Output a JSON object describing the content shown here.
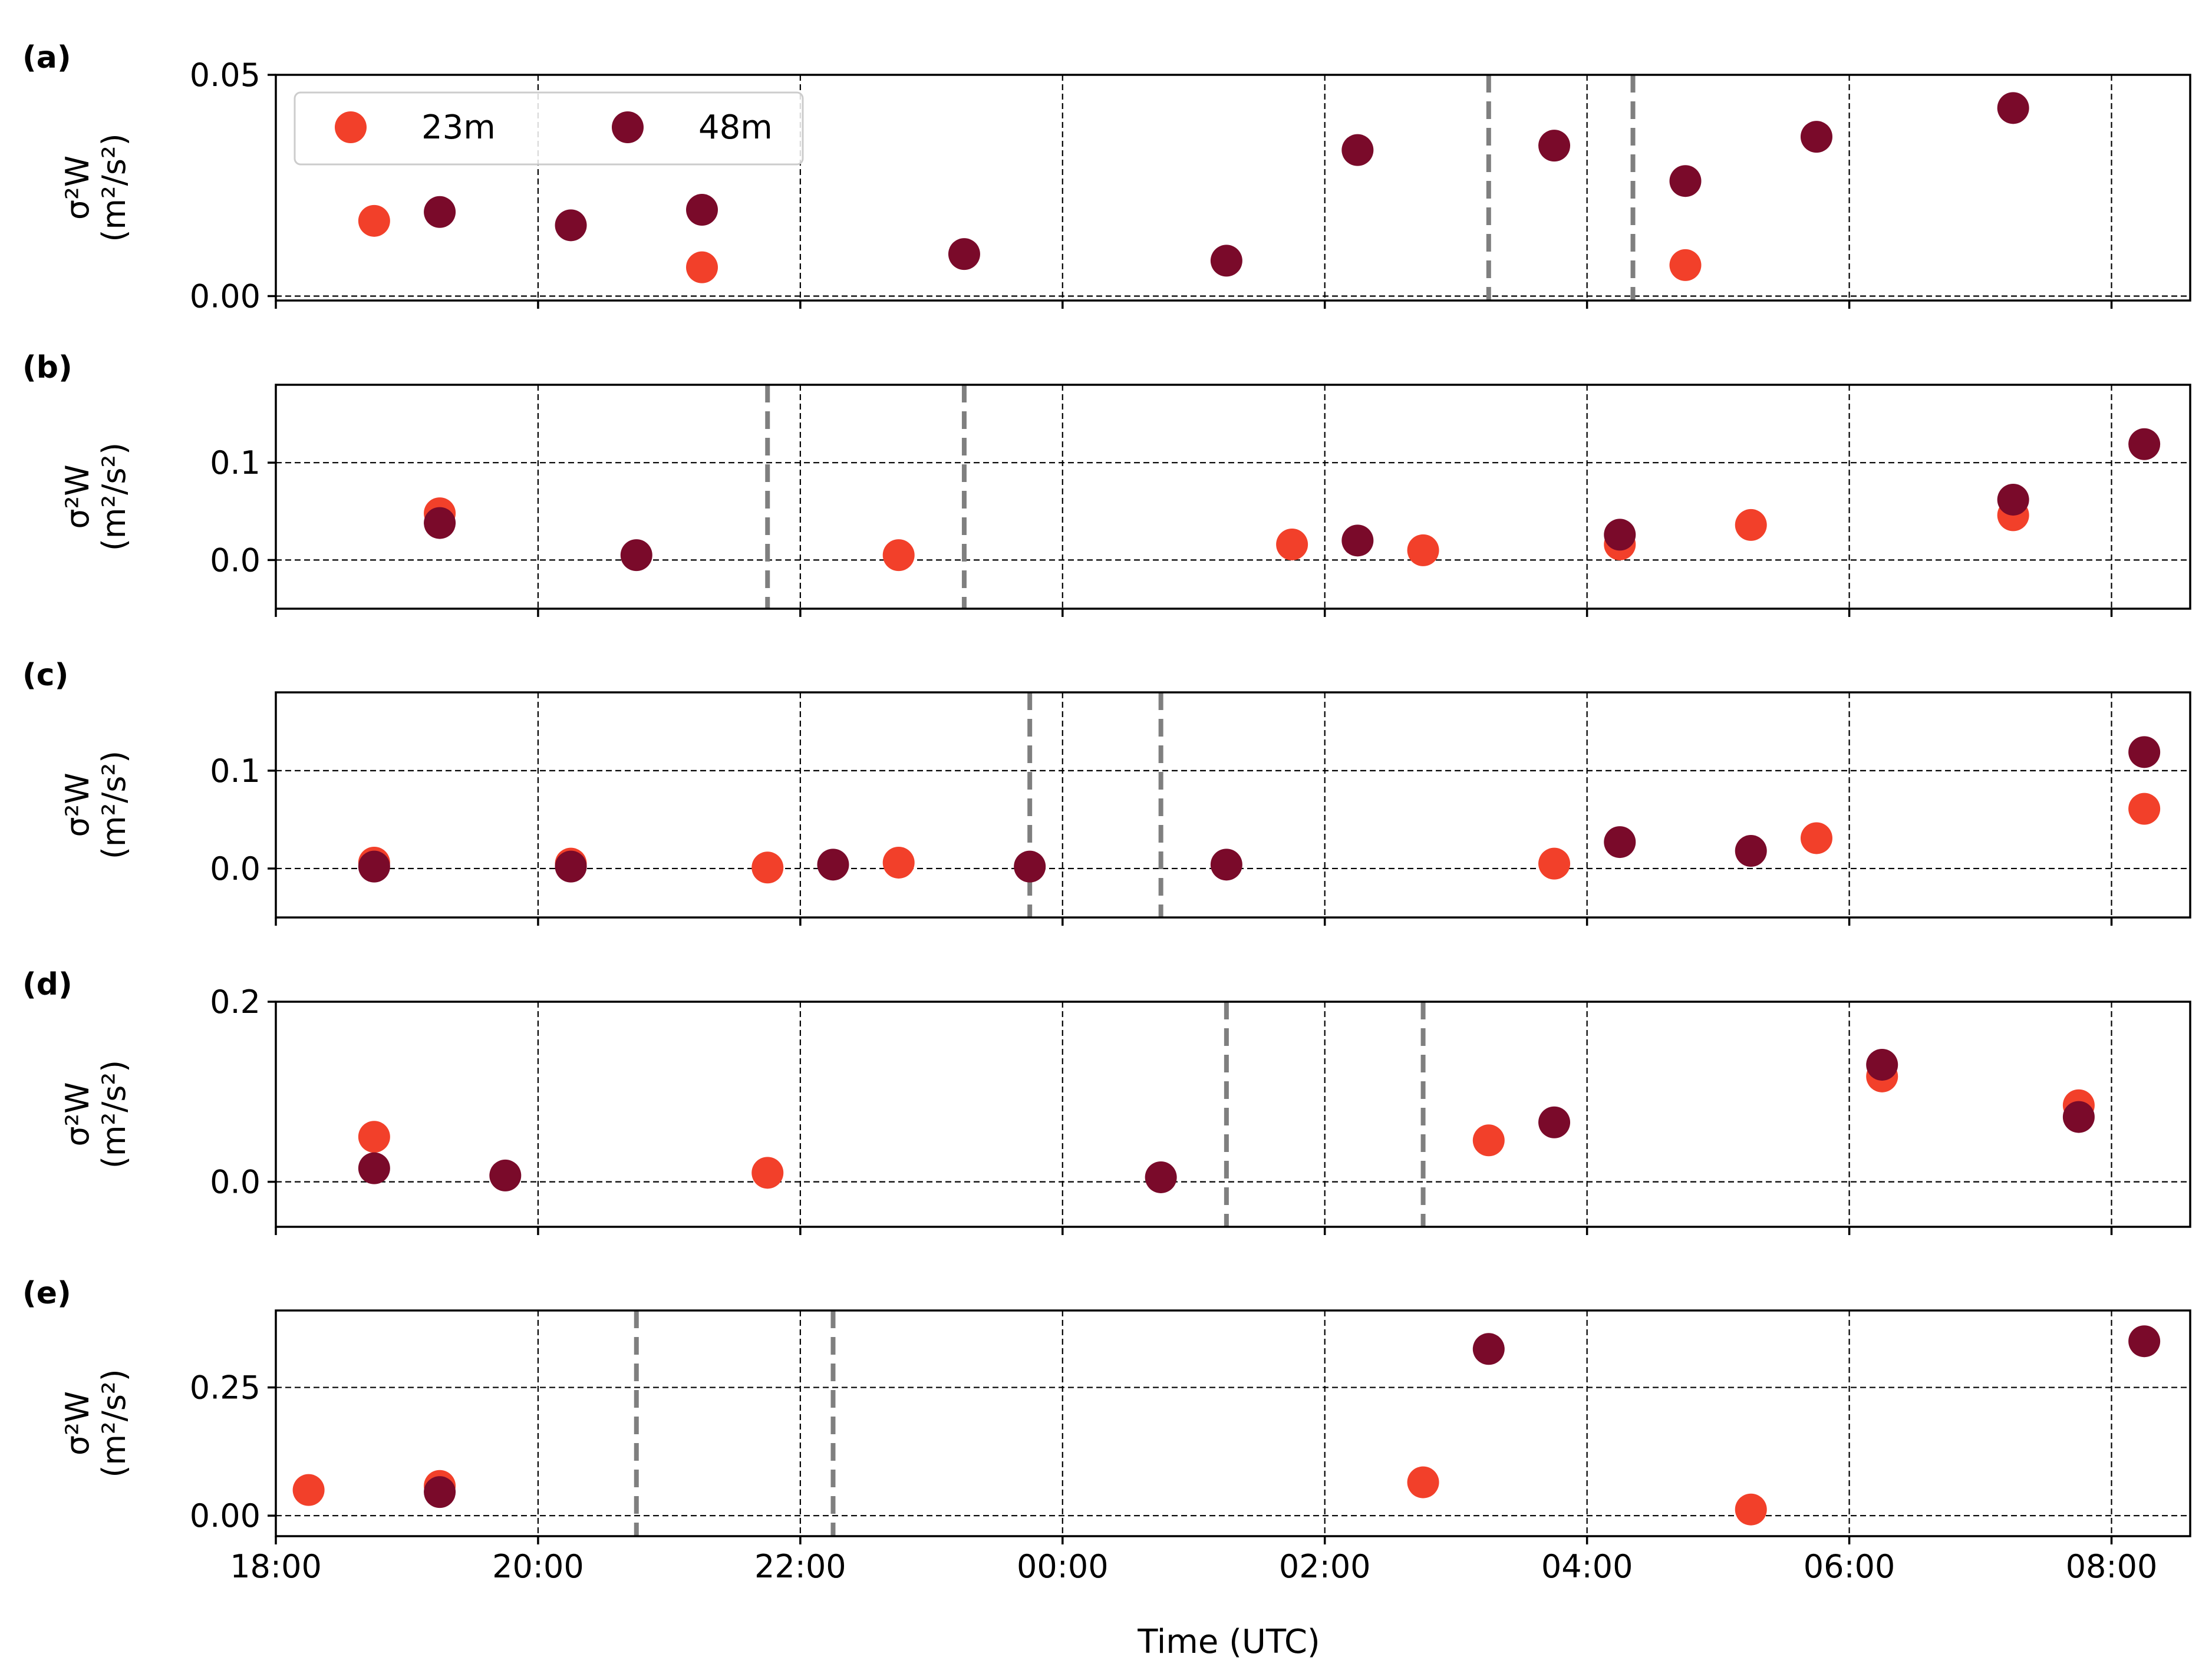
{
  "chart_data": {
    "type": "scatter",
    "xlabel": "Time (UTC)",
    "x_unit": "hours since 18:00 UTC",
    "xlim": [
      18.0,
      32.6
    ],
    "x_ticks": [
      {
        "value": 18,
        "label": "18:00"
      },
      {
        "value": 20,
        "label": "20:00"
      },
      {
        "value": 22,
        "label": "22:00"
      },
      {
        "value": 24,
        "label": "00:00"
      },
      {
        "value": 26,
        "label": "02:00"
      },
      {
        "value": 28,
        "label": "04:00"
      },
      {
        "value": 30,
        "label": "06:00"
      },
      {
        "value": 32,
        "label": "08:00"
      }
    ],
    "colors": {
      "23m": "#f2402a",
      "48m": "#7a0a2a",
      "event_line": "#7f7f7f",
      "grid": "#000000"
    },
    "legend": {
      "placement": "top-left of panel (a)",
      "entries": [
        "23m",
        "48m"
      ]
    },
    "ylabel_lines": [
      "σ²W",
      "(m²/s²)"
    ],
    "grid": true,
    "panels": [
      {
        "label": "(a)",
        "ylim": [
          -0.001,
          0.05
        ],
        "y_ticks": [
          {
            "value": 0.0,
            "label": "0.00"
          },
          {
            "value": 0.05,
            "label": "0.05"
          }
        ],
        "event_lines": [
          27.25,
          28.35
        ],
        "series": [
          {
            "name": "23m",
            "points": [
              [
                18.75,
                0.017
              ],
              [
                21.25,
                0.0065
              ],
              [
                28.75,
                0.007
              ]
            ]
          },
          {
            "name": "48m",
            "points": [
              [
                19.25,
                0.019
              ],
              [
                20.25,
                0.016
              ],
              [
                21.25,
                0.0195
              ],
              [
                23.25,
                0.0095
              ],
              [
                25.25,
                0.008
              ],
              [
                26.25,
                0.033
              ],
              [
                27.75,
                0.034
              ],
              [
                28.75,
                0.026
              ],
              [
                29.75,
                0.036
              ],
              [
                31.25,
                0.0425
              ]
            ]
          }
        ]
      },
      {
        "label": "(b)",
        "ylim": [
          -0.05,
          0.18
        ],
        "y_ticks": [
          {
            "value": 0.0,
            "label": "0.0"
          },
          {
            "value": 0.1,
            "label": "0.1"
          }
        ],
        "event_lines": [
          21.75,
          23.25
        ],
        "series": [
          {
            "name": "23m",
            "points": [
              [
                19.25,
                0.048
              ],
              [
                22.75,
                0.005
              ],
              [
                25.75,
                0.016
              ],
              [
                26.75,
                0.01
              ],
              [
                28.25,
                0.016
              ],
              [
                29.25,
                0.036
              ],
              [
                31.25,
                0.046
              ]
            ]
          },
          {
            "name": "48m",
            "points": [
              [
                19.25,
                0.038
              ],
              [
                20.75,
                0.005
              ],
              [
                26.25,
                0.02
              ],
              [
                28.25,
                0.026
              ],
              [
                31.25,
                0.062
              ],
              [
                32.25,
                0.119
              ]
            ]
          }
        ]
      },
      {
        "label": "(c)",
        "ylim": [
          -0.05,
          0.18
        ],
        "y_ticks": [
          {
            "value": 0.0,
            "label": "0.0"
          },
          {
            "value": 0.1,
            "label": "0.1"
          }
        ],
        "event_lines": [
          23.75,
          24.75
        ],
        "series": [
          {
            "name": "23m",
            "points": [
              [
                18.75,
                0.006
              ],
              [
                20.25,
                0.005
              ],
              [
                21.75,
                0.001
              ],
              [
                22.75,
                0.006
              ],
              [
                27.75,
                0.005
              ],
              [
                29.75,
                0.031
              ],
              [
                32.25,
                0.061
              ]
            ]
          },
          {
            "name": "48m",
            "points": [
              [
                18.75,
                0.002
              ],
              [
                20.25,
                0.002
              ],
              [
                22.25,
                0.004
              ],
              [
                23.75,
                0.002
              ],
              [
                25.25,
                0.004
              ],
              [
                28.25,
                0.027
              ],
              [
                29.25,
                0.018
              ],
              [
                32.25,
                0.119
              ]
            ]
          }
        ]
      },
      {
        "label": "(d)",
        "ylim": [
          -0.05,
          0.2
        ],
        "y_ticks": [
          {
            "value": 0.0,
            "label": "0.0"
          },
          {
            "value": 0.2,
            "label": "0.2"
          }
        ],
        "event_lines": [
          25.25,
          26.75
        ],
        "series": [
          {
            "name": "23m",
            "points": [
              [
                18.75,
                0.05
              ],
              [
                21.75,
                0.01
              ],
              [
                27.25,
                0.046
              ],
              [
                30.25,
                0.117
              ],
              [
                31.75,
                0.085
              ]
            ]
          },
          {
            "name": "48m",
            "points": [
              [
                18.75,
                0.015
              ],
              [
                19.75,
                0.007
              ],
              [
                24.75,
                0.005
              ],
              [
                27.75,
                0.066
              ],
              [
                30.25,
                0.13
              ],
              [
                31.75,
                0.072
              ]
            ]
          }
        ]
      },
      {
        "label": "(e)",
        "ylim": [
          -0.04,
          0.4
        ],
        "y_ticks": [
          {
            "value": 0.0,
            "label": "0.00"
          },
          {
            "value": 0.25,
            "label": "0.25"
          }
        ],
        "event_lines": [
          20.75,
          22.25
        ],
        "series": [
          {
            "name": "23m",
            "points": [
              [
                18.25,
                0.05
              ],
              [
                19.25,
                0.058
              ],
              [
                26.75,
                0.065
              ],
              [
                29.25,
                0.012
              ]
            ]
          },
          {
            "name": "48m",
            "points": [
              [
                19.25,
                0.046
              ],
              [
                27.25,
                0.325
              ],
              [
                32.25,
                0.34
              ]
            ]
          }
        ]
      }
    ]
  }
}
